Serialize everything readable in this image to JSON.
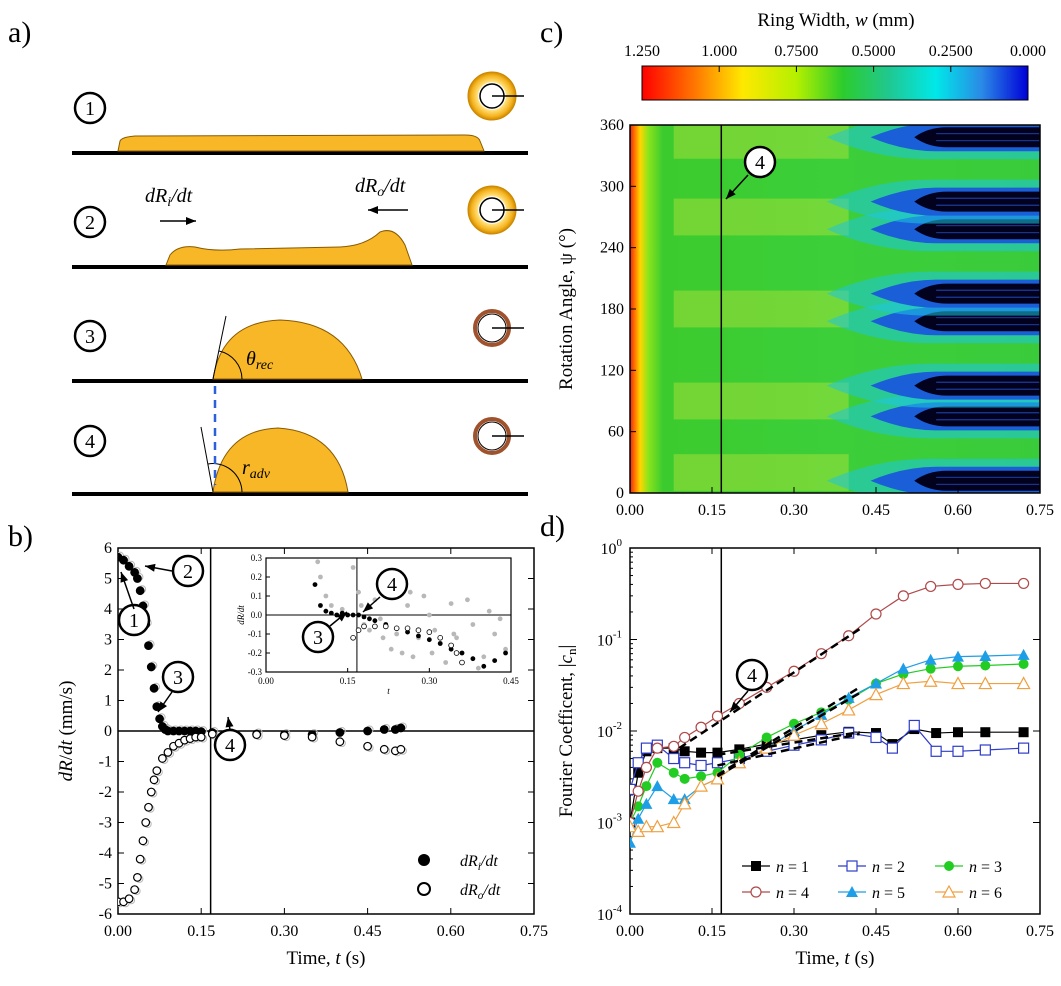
{
  "panels": {
    "a": {
      "label": "a)",
      "steps": [
        "1",
        "2",
        "3",
        "4"
      ],
      "annotations": {
        "dRi": "dR",
        "dRi_sub": "i",
        "dRi_tail": "/dt",
        "dRo": "dR",
        "dRo_sub": "o",
        "dRo_tail": "/dt",
        "theta": "θ",
        "theta_sub": "rec",
        "r": "r",
        "r_sub": "adv"
      }
    },
    "b": {
      "label": "b)"
    },
    "c": {
      "label": "c)"
    },
    "d": {
      "label": "d)"
    }
  },
  "colors": {
    "droplet": "#F7B727",
    "droplet_edge": "#8A5A00",
    "ring_dark": "#A0522D",
    "gray_marker": "#b8b8b8",
    "n1": "#000000",
    "n2": "#2E3CC8",
    "n3": "#22CC22",
    "n4": "#B04A4A",
    "n5": "#1E9EE6",
    "n6": "#F0A040",
    "dashed_line": "#2C5FD8"
  },
  "chart_data": [
    {
      "id": "b",
      "type": "scatter",
      "xlabel": "Time, t (s)",
      "xlabel_parts": [
        "Time, ",
        "t",
        " (s)"
      ],
      "ylabel": "dR/dt (mm/s)",
      "ylabel_parts": [
        "dR",
        "/",
        "dt",
        " (mm/s)"
      ],
      "xlim": [
        0,
        0.75
      ],
      "ylim": [
        -6,
        6
      ],
      "xticks": [
        "0.00",
        "0.15",
        "0.30",
        "0.45",
        "0.60",
        "0.75"
      ],
      "yticks": [
        "6",
        "5",
        "4",
        "3",
        "2",
        "1",
        "0",
        "-1",
        "-2",
        "-3",
        "-4",
        "-5",
        "-6"
      ],
      "vline": 0.167,
      "legend_position": "bottom-right",
      "series": [
        {
          "name": "dR_i/dt",
          "marker": "filled-circle",
          "x": [
            0.0,
            0.01,
            0.02,
            0.03,
            0.035,
            0.04,
            0.045,
            0.05,
            0.055,
            0.06,
            0.065,
            0.07,
            0.075,
            0.08,
            0.085,
            0.09,
            0.1,
            0.11,
            0.12,
            0.13,
            0.14,
            0.15,
            0.17,
            0.2,
            0.25,
            0.3,
            0.35,
            0.4,
            0.45,
            0.48,
            0.5,
            0.51
          ],
          "y": [
            5.7,
            5.6,
            5.4,
            5.2,
            5.0,
            4.6,
            4.1,
            3.5,
            2.8,
            2.1,
            1.4,
            0.8,
            0.4,
            0.15,
            0.05,
            0.0,
            0.0,
            0.0,
            0.0,
            0.0,
            0.0,
            -0.02,
            -0.05,
            -0.08,
            -0.1,
            -0.12,
            -0.12,
            -0.05,
            0.0,
            0.05,
            0.05,
            0.1
          ]
        },
        {
          "name": "dR_o/dt",
          "marker": "open-circle",
          "x": [
            0.0,
            0.01,
            0.02,
            0.03,
            0.035,
            0.04,
            0.045,
            0.05,
            0.055,
            0.06,
            0.065,
            0.07,
            0.08,
            0.09,
            0.1,
            0.11,
            0.12,
            0.13,
            0.14,
            0.15,
            0.17,
            0.2,
            0.25,
            0.3,
            0.35,
            0.4,
            0.45,
            0.48,
            0.5,
            0.51
          ],
          "y": [
            -5.6,
            -5.6,
            -5.5,
            -5.2,
            -4.8,
            -4.2,
            -3.6,
            -3.0,
            -2.5,
            -2.0,
            -1.6,
            -1.3,
            -0.9,
            -0.7,
            -0.5,
            -0.4,
            -0.3,
            -0.25,
            -0.2,
            -0.2,
            -0.1,
            -0.1,
            -0.12,
            -0.15,
            -0.2,
            -0.35,
            -0.5,
            -0.6,
            -0.65,
            -0.6
          ]
        }
      ],
      "inset": {
        "xlabel": "t",
        "ylabel": "dR/dt",
        "xlim": [
          0,
          0.45
        ],
        "ylim": [
          -0.3,
          0.3
        ],
        "xticks": [
          "0.00",
          "0.15",
          "0.30",
          "0.45"
        ],
        "yticks": [
          "0.3",
          "0.2",
          "0.1",
          "0.0",
          "-0.1",
          "-0.2",
          "-0.3"
        ]
      },
      "callouts": [
        "1",
        "2",
        "3",
        "4"
      ],
      "inset_callouts": [
        "3",
        "4"
      ]
    },
    {
      "id": "c",
      "type": "heatmap",
      "colorbar_title": "Ring Width, w (mm)",
      "colorbar_title_parts": [
        "Ring Width, ",
        "w",
        " (mm)"
      ],
      "colorbar_ticks": [
        "1.250",
        "1.000",
        "0.7500",
        "0.5000",
        "0.2500",
        "0.000"
      ],
      "colorbar_range": [
        1.25,
        0
      ],
      "xlabel": "",
      "ylabel": "Rotation Angle, ψ (°)",
      "xlim": [
        0,
        0.75
      ],
      "ylim": [
        0,
        360
      ],
      "xticks": [
        "0.00",
        "0.15",
        "0.30",
        "0.45",
        "0.60",
        "0.75"
      ],
      "yticks": [
        "360",
        "300",
        "240",
        "180",
        "120",
        "60",
        "0"
      ],
      "vline": 0.167,
      "callouts": [
        "4"
      ],
      "dark_band_centers_deg": [
        12,
        75,
        105,
        168,
        195,
        258,
        285,
        348
      ]
    },
    {
      "id": "d",
      "type": "line",
      "xlabel": "Time, t (s)",
      "xlabel_parts": [
        "Time, ",
        "t",
        " (s)"
      ],
      "ylabel": "Fourier Coefficent, |c_n|",
      "ylabel_parts": [
        "Fourier Coefficent, |",
        "c",
        "n",
        "|"
      ],
      "yscale": "log",
      "xlim": [
        0,
        0.75
      ],
      "ylim": [
        0.0001,
        1
      ],
      "xticks": [
        "0.00",
        "0.15",
        "0.30",
        "0.45",
        "0.60",
        "0.75"
      ],
      "yticks_exp": [
        "0",
        "-1",
        "-2",
        "-3",
        "-4"
      ],
      "vline": 0.167,
      "callouts": [
        "4"
      ],
      "legend_position": "bottom-right",
      "series": [
        {
          "name": "n = 1",
          "label_n": "n",
          "label_rest": " = 1",
          "marker": "filled-square",
          "color": "#000000",
          "x": [
            0,
            0.015,
            0.03,
            0.05,
            0.08,
            0.1,
            0.13,
            0.16,
            0.2,
            0.25,
            0.3,
            0.35,
            0.4,
            0.45,
            0.48,
            0.52,
            0.56,
            0.6,
            0.65,
            0.72
          ],
          "y": [
            0.001,
            0.0035,
            0.006,
            0.0065,
            0.0065,
            0.006,
            0.0058,
            0.0058,
            0.0063,
            0.0072,
            0.008,
            0.009,
            0.0098,
            0.0095,
            0.0072,
            0.0105,
            0.0095,
            0.0097,
            0.0097,
            0.0097
          ]
        },
        {
          "name": "n = 2",
          "label_n": "n",
          "label_rest": " = 2",
          "marker": "open-square",
          "color": "#2E3CC8",
          "x": [
            0,
            0.015,
            0.03,
            0.05,
            0.08,
            0.1,
            0.13,
            0.16,
            0.2,
            0.25,
            0.3,
            0.35,
            0.4,
            0.45,
            0.48,
            0.52,
            0.56,
            0.6,
            0.65,
            0.72
          ],
          "y": [
            0.0023,
            0.0045,
            0.0065,
            0.007,
            0.005,
            0.0045,
            0.0042,
            0.0045,
            0.005,
            0.006,
            0.007,
            0.008,
            0.0095,
            0.0085,
            0.0065,
            0.0115,
            0.006,
            0.006,
            0.0062,
            0.0065
          ]
        },
        {
          "name": "n = 3",
          "label_n": "n",
          "label_rest": " = 3",
          "marker": "filled-circle",
          "color": "#22CC22",
          "x": [
            0,
            0.015,
            0.03,
            0.05,
            0.08,
            0.1,
            0.13,
            0.16,
            0.2,
            0.25,
            0.3,
            0.35,
            0.4,
            0.45,
            0.5,
            0.55,
            0.6,
            0.65,
            0.72
          ],
          "y": [
            0.001,
            0.0015,
            0.0025,
            0.0045,
            0.0035,
            0.003,
            0.0032,
            0.0035,
            0.0055,
            0.0085,
            0.012,
            0.016,
            0.022,
            0.033,
            0.042,
            0.048,
            0.051,
            0.052,
            0.054
          ]
        },
        {
          "name": "n = 4",
          "label_n": "n",
          "label_rest": " = 4",
          "marker": "open-circle",
          "color": "#B04A4A",
          "x": [
            0,
            0.015,
            0.03,
            0.05,
            0.08,
            0.1,
            0.13,
            0.16,
            0.2,
            0.25,
            0.3,
            0.35,
            0.4,
            0.45,
            0.5,
            0.55,
            0.6,
            0.65,
            0.72
          ],
          "y": [
            0.001,
            0.0022,
            0.004,
            0.0065,
            0.0068,
            0.0085,
            0.011,
            0.0145,
            0.02,
            0.03,
            0.045,
            0.07,
            0.11,
            0.19,
            0.3,
            0.38,
            0.4,
            0.41,
            0.41
          ]
        },
        {
          "name": "n = 5",
          "label_n": "n",
          "label_rest": " = 5",
          "marker": "filled-triangle",
          "color": "#1E9EE6",
          "x": [
            0,
            0.015,
            0.03,
            0.05,
            0.08,
            0.1,
            0.13,
            0.16,
            0.2,
            0.25,
            0.3,
            0.35,
            0.4,
            0.45,
            0.5,
            0.55,
            0.6,
            0.65,
            0.72
          ],
          "y": [
            0.0006,
            0.0011,
            0.0016,
            0.0025,
            0.0018,
            0.0018,
            0.0025,
            0.003,
            0.0045,
            0.0065,
            0.01,
            0.015,
            0.023,
            0.033,
            0.048,
            0.06,
            0.065,
            0.066,
            0.068
          ]
        },
        {
          "name": "n = 6",
          "label_n": "n",
          "label_rest": " = 6",
          "marker": "open-triangle",
          "color": "#F0A040",
          "x": [
            0,
            0.015,
            0.03,
            0.05,
            0.08,
            0.1,
            0.13,
            0.16,
            0.2,
            0.25,
            0.3,
            0.35,
            0.4,
            0.45,
            0.5,
            0.55,
            0.6,
            0.65,
            0.72
          ],
          "y": [
            0.0009,
            0.0008,
            0.0009,
            0.0009,
            0.001,
            0.0016,
            0.0025,
            0.003,
            0.0045,
            0.0065,
            0.009,
            0.012,
            0.017,
            0.025,
            0.033,
            0.035,
            0.033,
            0.033,
            0.033
          ]
        }
      ]
    }
  ]
}
